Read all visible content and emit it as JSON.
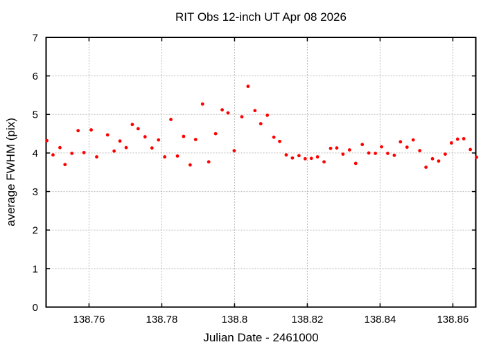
{
  "chart_data": {
    "type": "scatter",
    "title": "RIT Obs 12-inch UT Apr 08 2026",
    "xlabel": "Julian Date - 2461000",
    "ylabel": "average FWHM (pix)",
    "xlim": [
      138.7482,
      138.8663
    ],
    "ylim": [
      0,
      7
    ],
    "x_ticks": [
      138.76,
      138.78,
      138.8,
      138.82,
      138.84,
      138.86
    ],
    "x_tick_labels": [
      "138.76",
      "138.78",
      "138.8",
      "138.82",
      "138.84",
      "138.86"
    ],
    "y_ticks": [
      0,
      1,
      2,
      3,
      4,
      5,
      6,
      7
    ],
    "y_tick_labels": [
      "0",
      "1",
      "2",
      "3",
      "4",
      "5",
      "6",
      "7"
    ],
    "grid": true,
    "grid_style": "dashed",
    "legend": "none",
    "marker": "filled-circle",
    "marker_radius": 2.4,
    "colors": {
      "points": "#ff0000",
      "axis": "#000000",
      "grid": "#bbbbbb",
      "background": "#ffffff",
      "text": "#000000"
    },
    "series": [
      {
        "name": "average FWHM",
        "points": [
          [
            138.7484,
            4.32
          ],
          [
            138.7501,
            3.95
          ],
          [
            138.752,
            4.14
          ],
          [
            138.7534,
            3.7
          ],
          [
            138.7553,
            3.99
          ],
          [
            138.757,
            4.58
          ],
          [
            138.7586,
            4.01
          ],
          [
            138.7606,
            4.6
          ],
          [
            138.7621,
            3.9
          ],
          [
            138.7651,
            4.47
          ],
          [
            138.7669,
            4.05
          ],
          [
            138.7685,
            4.31
          ],
          [
            138.7702,
            4.14
          ],
          [
            138.7719,
            4.74
          ],
          [
            138.7735,
            4.63
          ],
          [
            138.7754,
            4.42
          ],
          [
            138.7773,
            4.13
          ],
          [
            138.7791,
            4.34
          ],
          [
            138.7808,
            3.9
          ],
          [
            138.7825,
            4.87
          ],
          [
            138.7843,
            3.92
          ],
          [
            138.786,
            4.43
          ],
          [
            138.7878,
            3.69
          ],
          [
            138.7893,
            4.35
          ],
          [
            138.7912,
            5.27
          ],
          [
            138.7929,
            3.77
          ],
          [
            138.7948,
            4.5
          ],
          [
            138.7966,
            5.12
          ],
          [
            138.7982,
            5.04
          ],
          [
            138.7999,
            4.06
          ],
          [
            138.802,
            4.94
          ],
          [
            138.8037,
            5.73
          ],
          [
            138.8056,
            5.1
          ],
          [
            138.8072,
            4.76
          ],
          [
            138.809,
            4.98
          ],
          [
            138.8108,
            4.41
          ],
          [
            138.8124,
            4.3
          ],
          [
            138.8142,
            3.95
          ],
          [
            138.8159,
            3.87
          ],
          [
            138.8177,
            3.93
          ],
          [
            138.8194,
            3.85
          ],
          [
            138.8211,
            3.86
          ],
          [
            138.8228,
            3.9
          ],
          [
            138.8246,
            3.77
          ],
          [
            138.8264,
            4.12
          ],
          [
            138.8281,
            4.13
          ],
          [
            138.8298,
            3.97
          ],
          [
            138.8316,
            4.08
          ],
          [
            138.8333,
            3.73
          ],
          [
            138.8351,
            4.22
          ],
          [
            138.8369,
            4.0
          ],
          [
            138.8387,
            3.99
          ],
          [
            138.8404,
            4.16
          ],
          [
            138.8421,
            3.99
          ],
          [
            138.8439,
            3.94
          ],
          [
            138.8456,
            4.29
          ],
          [
            138.8474,
            4.15
          ],
          [
            138.8491,
            4.34
          ],
          [
            138.8509,
            4.06
          ],
          [
            138.8526,
            3.63
          ],
          [
            138.8544,
            3.85
          ],
          [
            138.8561,
            3.79
          ],
          [
            138.8579,
            3.97
          ],
          [
            138.8596,
            4.26
          ],
          [
            138.8613,
            4.36
          ],
          [
            138.863,
            4.37
          ],
          [
            138.8648,
            4.09
          ],
          [
            138.8665,
            3.89
          ]
        ]
      }
    ]
  }
}
